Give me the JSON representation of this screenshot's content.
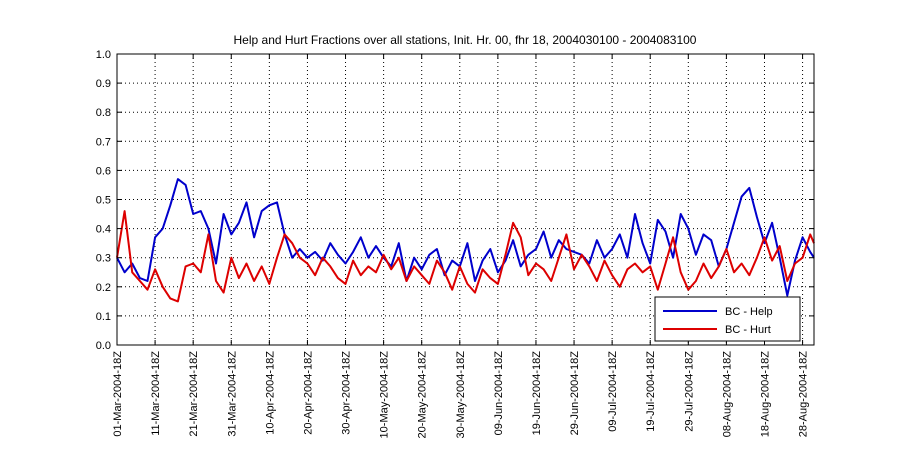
{
  "chart_data": {
    "type": "line",
    "title": "Help and Hurt Fractions over all stations, Init. Hr. 00, fhr 18, 2004030100 - 2004083100",
    "xlabel": "",
    "ylabel": "",
    "ylim": [
      0,
      1
    ],
    "yticks": [
      "0.0",
      "0.1",
      "0.2",
      "0.3",
      "0.4",
      "0.5",
      "0.6",
      "0.7",
      "0.8",
      "0.9",
      "1.0"
    ],
    "xlim_days": [
      0,
      183
    ],
    "xticks": [
      {
        "day": 0,
        "label": "01-Mar-2004-18Z"
      },
      {
        "day": 10,
        "label": "11-Mar-2004-18Z"
      },
      {
        "day": 20,
        "label": "21-Mar-2004-18Z"
      },
      {
        "day": 30,
        "label": "31-Mar-2004-18Z"
      },
      {
        "day": 40,
        "label": "10-Apr-2004-18Z"
      },
      {
        "day": 50,
        "label": "20-Apr-2004-18Z"
      },
      {
        "day": 60,
        "label": "30-Apr-2004-18Z"
      },
      {
        "day": 70,
        "label": "10-May-2004-18Z"
      },
      {
        "day": 80,
        "label": "20-May-2004-18Z"
      },
      {
        "day": 90,
        "label": "30-May-2004-18Z"
      },
      {
        "day": 100,
        "label": "09-Jun-2004-18Z"
      },
      {
        "day": 110,
        "label": "19-Jun-2004-18Z"
      },
      {
        "day": 120,
        "label": "29-Jun-2004-18Z"
      },
      {
        "day": 130,
        "label": "09-Jul-2004-18Z"
      },
      {
        "day": 140,
        "label": "19-Jul-2004-18Z"
      },
      {
        "day": 150,
        "label": "29-Jul-2004-18Z"
      },
      {
        "day": 160,
        "label": "08-Aug-2004-18Z"
      },
      {
        "day": 170,
        "label": "18-Aug-2004-18Z"
      },
      {
        "day": 180,
        "label": "28-Aug-2004-18Z"
      }
    ],
    "grid": true,
    "legend": "bottom-right",
    "series": [
      {
        "name": "BC - Help",
        "color": "#0000cc",
        "x": [
          0,
          2,
          4,
          6,
          8,
          10,
          12,
          14,
          16,
          18,
          20,
          22,
          24,
          26,
          28,
          30,
          32,
          34,
          36,
          38,
          40,
          42,
          44,
          46,
          48,
          50,
          52,
          54,
          56,
          58,
          60,
          62,
          64,
          66,
          68,
          70,
          72,
          74,
          76,
          78,
          80,
          82,
          84,
          86,
          88,
          90,
          92,
          94,
          96,
          98,
          100,
          102,
          104,
          106,
          108,
          110,
          112,
          114,
          116,
          118,
          120,
          122,
          124,
          126,
          128,
          130,
          132,
          134,
          136,
          138,
          140,
          142,
          144,
          146,
          148,
          150,
          152,
          154,
          156,
          158,
          160,
          162,
          164,
          166,
          168,
          170,
          172,
          174,
          176,
          178,
          180,
          182,
          183
        ],
        "values": [
          0.3,
          0.25,
          0.28,
          0.23,
          0.22,
          0.37,
          0.4,
          0.48,
          0.57,
          0.55,
          0.45,
          0.46,
          0.4,
          0.28,
          0.45,
          0.38,
          0.42,
          0.49,
          0.37,
          0.46,
          0.48,
          0.49,
          0.38,
          0.3,
          0.33,
          0.3,
          0.32,
          0.29,
          0.35,
          0.31,
          0.28,
          0.32,
          0.37,
          0.3,
          0.34,
          0.3,
          0.27,
          0.35,
          0.22,
          0.3,
          0.26,
          0.31,
          0.33,
          0.24,
          0.29,
          0.27,
          0.35,
          0.22,
          0.29,
          0.33,
          0.25,
          0.29,
          0.36,
          0.27,
          0.31,
          0.33,
          0.39,
          0.3,
          0.36,
          0.33,
          0.32,
          0.31,
          0.28,
          0.36,
          0.3,
          0.33,
          0.38,
          0.3,
          0.45,
          0.35,
          0.28,
          0.43,
          0.39,
          0.3,
          0.45,
          0.4,
          0.31,
          0.38,
          0.36,
          0.27,
          0.33,
          0.42,
          0.51,
          0.54,
          0.44,
          0.35,
          0.42,
          0.3,
          0.17,
          0.29,
          0.37,
          0.32,
          0.3
        ]
      },
      {
        "name": "BC - Hurt",
        "color": "#dd0000",
        "x": [
          0,
          2,
          4,
          6,
          8,
          10,
          12,
          14,
          16,
          18,
          20,
          22,
          24,
          26,
          28,
          30,
          32,
          34,
          36,
          38,
          40,
          42,
          44,
          46,
          48,
          50,
          52,
          54,
          56,
          58,
          60,
          62,
          64,
          66,
          68,
          70,
          72,
          74,
          76,
          78,
          80,
          82,
          84,
          86,
          88,
          90,
          92,
          94,
          96,
          98,
          100,
          102,
          104,
          106,
          108,
          110,
          112,
          114,
          116,
          118,
          120,
          122,
          124,
          126,
          128,
          130,
          132,
          134,
          136,
          138,
          140,
          142,
          144,
          146,
          148,
          150,
          152,
          154,
          156,
          158,
          160,
          162,
          164,
          166,
          168,
          170,
          172,
          174,
          176,
          178,
          180,
          182,
          183
        ],
        "values": [
          0.3,
          0.46,
          0.25,
          0.22,
          0.19,
          0.26,
          0.2,
          0.16,
          0.15,
          0.27,
          0.28,
          0.25,
          0.38,
          0.22,
          0.18,
          0.3,
          0.23,
          0.28,
          0.22,
          0.27,
          0.21,
          0.3,
          0.38,
          0.35,
          0.3,
          0.28,
          0.24,
          0.3,
          0.27,
          0.23,
          0.21,
          0.29,
          0.24,
          0.27,
          0.25,
          0.31,
          0.26,
          0.3,
          0.22,
          0.27,
          0.24,
          0.21,
          0.29,
          0.25,
          0.19,
          0.27,
          0.21,
          0.18,
          0.26,
          0.23,
          0.21,
          0.31,
          0.42,
          0.37,
          0.24,
          0.28,
          0.26,
          0.22,
          0.3,
          0.38,
          0.26,
          0.31,
          0.27,
          0.22,
          0.29,
          0.24,
          0.2,
          0.26,
          0.28,
          0.25,
          0.27,
          0.19,
          0.28,
          0.37,
          0.25,
          0.19,
          0.22,
          0.28,
          0.23,
          0.27,
          0.33,
          0.25,
          0.28,
          0.24,
          0.3,
          0.37,
          0.29,
          0.34,
          0.22,
          0.28,
          0.3,
          0.38,
          0.35
        ]
      }
    ]
  }
}
